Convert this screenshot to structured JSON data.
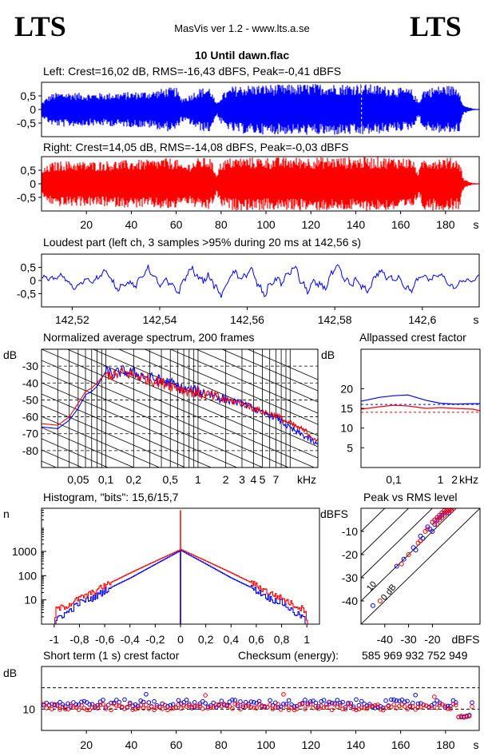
{
  "header": {
    "logo_left": "LTS",
    "logo_right": "LTS",
    "app": "MasVis ver 1.2 - www.lts.a.se",
    "file": "10 Until dawn.flac"
  },
  "colors": {
    "left": "#0000ff",
    "right": "#ff0000",
    "grid": "#000000"
  },
  "chart_data": [
    {
      "type": "area",
      "id": "left_waveform",
      "title": "Left: Crest=16,02 dB, RMS=-16,43 dBFS, Peak=-0,41 dBFS",
      "y_ticks": [
        "0,5",
        "0",
        "-0,5"
      ],
      "y_values": [
        0.5,
        0,
        -0.5
      ],
      "ylim": [
        -1,
        1
      ],
      "xlim": [
        0,
        195
      ],
      "peak_marker_s": 142.56,
      "envelope_t": [
        0,
        3,
        5,
        10,
        20,
        30,
        40,
        50,
        55,
        60,
        62,
        65,
        70,
        75,
        78,
        80,
        85,
        90,
        100,
        110,
        120,
        130,
        140,
        142,
        143,
        150,
        160,
        165,
        168,
        170,
        175,
        180,
        186,
        188,
        190,
        192,
        195
      ],
      "envelope_a": [
        0.25,
        0.5,
        0.6,
        0.65,
        0.6,
        0.62,
        0.65,
        0.7,
        0.8,
        0.82,
        0.45,
        0.5,
        0.78,
        0.85,
        0.2,
        0.55,
        0.85,
        0.9,
        0.92,
        0.92,
        0.95,
        0.95,
        0.95,
        0.98,
        0.95,
        0.9,
        0.8,
        0.75,
        0.28,
        0.75,
        0.85,
        0.9,
        0.85,
        0.15,
        0.1,
        0.03,
        0.02
      ]
    },
    {
      "type": "area",
      "id": "right_waveform",
      "title": "Right: Crest=14,05 dB, RMS=-14,08 dBFS, Peak=-0,03 dBFS",
      "y_ticks": [
        "0,5",
        "0",
        "-0,5"
      ],
      "y_values": [
        0.5,
        0,
        -0.5
      ],
      "ylim": [
        -1,
        1
      ],
      "xlim": [
        0,
        195
      ],
      "x_ticks": [
        "20",
        "40",
        "60",
        "80",
        "100",
        "120",
        "140",
        "160",
        "180"
      ],
      "x_tick_values": [
        20,
        40,
        60,
        80,
        100,
        120,
        140,
        160,
        180
      ],
      "x_unit": "s",
      "envelope_t": [
        0,
        3,
        5,
        10,
        20,
        30,
        40,
        50,
        55,
        60,
        62,
        65,
        70,
        75,
        78,
        80,
        85,
        90,
        100,
        110,
        120,
        130,
        140,
        150,
        160,
        165,
        168,
        170,
        175,
        180,
        186,
        188,
        190,
        192,
        195
      ],
      "envelope_a": [
        0.5,
        0.7,
        0.8,
        0.85,
        0.82,
        0.85,
        0.88,
        0.9,
        0.95,
        0.95,
        0.7,
        0.75,
        0.95,
        0.98,
        0.4,
        0.85,
        0.98,
        0.98,
        0.98,
        0.98,
        0.99,
        0.99,
        0.99,
        0.99,
        0.98,
        0.95,
        0.45,
        0.95,
        0.98,
        0.98,
        0.95,
        0.2,
        0.1,
        0.03,
        0.02
      ]
    },
    {
      "type": "line",
      "id": "loudest_part",
      "title": "Loudest part (left  ch, 3 samples >95% during 20 ms at 142,56 s)",
      "y_ticks": [
        "0,5",
        "0",
        "-0,5"
      ],
      "y_values": [
        0.5,
        0,
        -0.5
      ],
      "ylim": [
        -1,
        1
      ],
      "xlim": [
        142.513,
        142.613
      ],
      "x_ticks": [
        "142,52",
        "142,54",
        "142,56",
        "142,58",
        "142,6"
      ],
      "x_tick_values": [
        142.52,
        142.54,
        142.56,
        142.58,
        142.6
      ],
      "x_unit": "s",
      "series": [
        {
          "color": "#0000ff"
        }
      ]
    },
    {
      "type": "line",
      "id": "spectrum",
      "title": "Normalized average spectrum, 200 frames",
      "ylabel": "dB",
      "x_unit": "kHz",
      "x_scale": "log",
      "xlim": [
        0.02,
        20
      ],
      "ylim": [
        -90,
        -20
      ],
      "y_ticks": [
        "-30",
        "-40",
        "-50",
        "-60",
        "-70",
        "-80"
      ],
      "y_values": [
        -30,
        -40,
        -50,
        -60,
        -70,
        -80
      ],
      "x_ticks": [
        "0,05",
        "0,1",
        "0,2",
        "0,5",
        "1",
        "2",
        "3",
        "4",
        "5",
        "7"
      ],
      "x_tick_values": [
        0.05,
        0.1,
        0.2,
        0.5,
        1,
        2,
        3,
        4,
        5,
        7
      ],
      "series": [
        {
          "color": "#0000ff",
          "x": [
            0.02,
            0.03,
            0.04,
            0.05,
            0.06,
            0.07,
            0.08,
            0.1,
            0.12,
            0.15,
            0.2,
            0.3,
            0.5,
            0.7,
            1,
            1.5,
            2,
            3,
            4,
            5,
            7,
            10,
            15,
            20
          ],
          "y": [
            -66,
            -67,
            -62,
            -55,
            -47,
            -45,
            -42,
            -33,
            -35,
            -33,
            -34,
            -37,
            -40,
            -44,
            -45,
            -47,
            -50,
            -52,
            -55,
            -58,
            -60,
            -67,
            -72,
            -77
          ]
        },
        {
          "color": "#ff0000",
          "x": [
            0.02,
            0.03,
            0.04,
            0.05,
            0.06,
            0.07,
            0.08,
            0.1,
            0.12,
            0.15,
            0.2,
            0.3,
            0.5,
            0.7,
            1,
            1.5,
            2,
            3,
            4,
            5,
            7,
            10,
            15,
            20
          ],
          "y": [
            -64,
            -65,
            -60,
            -52,
            -45,
            -43,
            -40,
            -34,
            -36,
            -34,
            -35,
            -38,
            -41,
            -44,
            -46,
            -48,
            -50,
            -52,
            -55,
            -57,
            -59,
            -64,
            -69,
            -74
          ]
        }
      ]
    },
    {
      "type": "line",
      "id": "allpassed_crest",
      "title": "Allpassed crest factor",
      "ylabel": "dB",
      "x_unit": "kHz",
      "x_scale": "log",
      "xlim": [
        0.02,
        7
      ],
      "ylim": [
        0,
        30
      ],
      "y_ticks": [
        "20",
        "15",
        "10",
        "5"
      ],
      "y_values": [
        20,
        15,
        10,
        5
      ],
      "x_ticks": [
        "0,1",
        "1",
        "2"
      ],
      "x_tick_values": [
        0.1,
        1,
        2
      ],
      "series": [
        {
          "color": "#0000ff",
          "x": [
            0.02,
            0.05,
            0.1,
            0.2,
            0.5,
            1,
            2,
            5,
            7
          ],
          "y": [
            16.8,
            17.8,
            18.2,
            18.4,
            17.0,
            16.3,
            16.1,
            16.2,
            16.2
          ]
        },
        {
          "color": "#ff0000",
          "x": [
            0.02,
            0.05,
            0.1,
            0.2,
            0.5,
            1,
            2,
            5,
            7
          ],
          "y": [
            14.8,
            15.4,
            15.8,
            15.6,
            15.0,
            15.2,
            15.0,
            14.8,
            14.4
          ]
        }
      ],
      "reference_lines": [
        16.0,
        14.0
      ]
    },
    {
      "type": "line",
      "id": "histogram",
      "title": "Histogram, \"bits\": 15,6/15,7",
      "ylabel": "n",
      "y_scale": "log",
      "xlim": [
        -1.1,
        1.1
      ],
      "ylim": [
        1,
        60000
      ],
      "y_ticks": [
        "1000",
        "100",
        "10"
      ],
      "y_values": [
        1000,
        100,
        10
      ],
      "x_ticks": [
        "-1",
        "-0,8",
        "-0,6",
        "-0,4",
        "-0,2",
        "0",
        "0,2",
        "0,4",
        "0,6",
        "0,8",
        "1"
      ],
      "x_tick_values": [
        -1,
        -0.8,
        -0.6,
        -0.4,
        -0.2,
        0,
        0.2,
        0.4,
        0.6,
        0.8,
        1
      ],
      "series": [
        {
          "color": "#0000ff",
          "x": [
            -0.99,
            -0.97,
            -0.9,
            -0.8,
            -0.7,
            -0.6,
            -0.4,
            -0.2,
            0,
            0.2,
            0.4,
            0.6,
            0.7,
            0.8,
            0.9,
            0.97,
            0.99
          ],
          "y": [
            1,
            2,
            3,
            8,
            12,
            25,
            80,
            300,
            1100,
            300,
            80,
            25,
            12,
            8,
            3,
            2,
            1
          ]
        },
        {
          "color": "#ff0000",
          "x": [
            -1,
            -0.99,
            -0.9,
            -0.8,
            -0.7,
            -0.6,
            -0.4,
            -0.2,
            0,
            0.2,
            0.4,
            0.6,
            0.7,
            0.8,
            0.9,
            0.99,
            1
          ],
          "y": [
            1,
            4,
            6,
            12,
            20,
            40,
            130,
            400,
            1200,
            400,
            130,
            40,
            20,
            12,
            6,
            4,
            1
          ]
        }
      ],
      "spikes": [
        {
          "x": 0,
          "y": 50000,
          "color": "#ff0000"
        },
        {
          "x": 0,
          "y": 1100,
          "color": "#0000ff"
        }
      ]
    },
    {
      "type": "scatter",
      "id": "peak_vs_rms",
      "title": "Peak vs RMS level",
      "ylabel": "dBFS",
      "x_unit": "dBFS",
      "xlim": [
        -50,
        0
      ],
      "ylim": [
        -50,
        0
      ],
      "y_ticks": [
        "-10",
        "-20",
        "-30",
        "-40"
      ],
      "y_values": [
        -10,
        -20,
        -30,
        -40
      ],
      "x_ticks": [
        "-40",
        "-30",
        "-20"
      ],
      "x_tick_values": [
        -40,
        -30,
        -20
      ],
      "crest_lines": [
        "0 dB",
        "10",
        "20",
        "30",
        "40"
      ],
      "crest_line_values": [
        0,
        10,
        20,
        30,
        40
      ],
      "series": [
        {
          "color": "#0000ff",
          "x": [
            -45,
            -35,
            -32,
            -28,
            -27,
            -25,
            -24,
            -22,
            -21,
            -20,
            -19,
            -18,
            -17,
            -16,
            -15,
            -14,
            -13,
            -12,
            -20,
            -19,
            -18,
            -17,
            -16,
            -15,
            -14,
            -13,
            -12
          ],
          "y": [
            -42,
            -25,
            -22,
            -17,
            -18,
            -12,
            -13,
            -8,
            -9,
            -6,
            -5,
            -4,
            -3,
            -2,
            -1,
            -1,
            -2,
            -1,
            -10,
            -7,
            -5,
            -4,
            -3,
            -2,
            -2,
            -1,
            -1
          ]
        },
        {
          "color": "#ff0000",
          "x": [
            -42,
            -33,
            -30,
            -26,
            -25,
            -23,
            -22,
            -20,
            -19,
            -18,
            -17,
            -16,
            -15,
            -14,
            -13,
            -12,
            -11,
            -18,
            -17,
            -16,
            -15,
            -14,
            -13,
            -12
          ],
          "y": [
            -40,
            -24,
            -20,
            -15,
            -14,
            -10,
            -9,
            -6,
            -5,
            -4,
            -3,
            -2,
            -1,
            -1,
            -1,
            0,
            0,
            -7,
            -5,
            -4,
            -3,
            -2,
            -1,
            -1
          ]
        }
      ]
    },
    {
      "type": "scatter",
      "id": "short_term_crest",
      "title": "Short term (1 s) crest factor",
      "checksum_label": "Checksum (energy):",
      "checksum_value": "585 969 932 752 949",
      "ylabel": "dB",
      "xlim": [
        0,
        195
      ],
      "ylim": [
        0,
        30
      ],
      "y_ticks": [
        "10"
      ],
      "y_values": [
        10
      ],
      "x_ticks": [
        "20",
        "40",
        "60",
        "80",
        "100",
        "120",
        "140",
        "160",
        "180"
      ],
      "x_tick_values": [
        20,
        40,
        60,
        80,
        100,
        120,
        140,
        160,
        180
      ],
      "x_unit": "s",
      "reference_lines": [
        20,
        10
      ],
      "series": [
        {
          "color": "#0000ff",
          "base": 12.5,
          "spread": 4
        },
        {
          "color": "#ff0000",
          "base": 11.0,
          "spread": 3
        }
      ]
    }
  ]
}
